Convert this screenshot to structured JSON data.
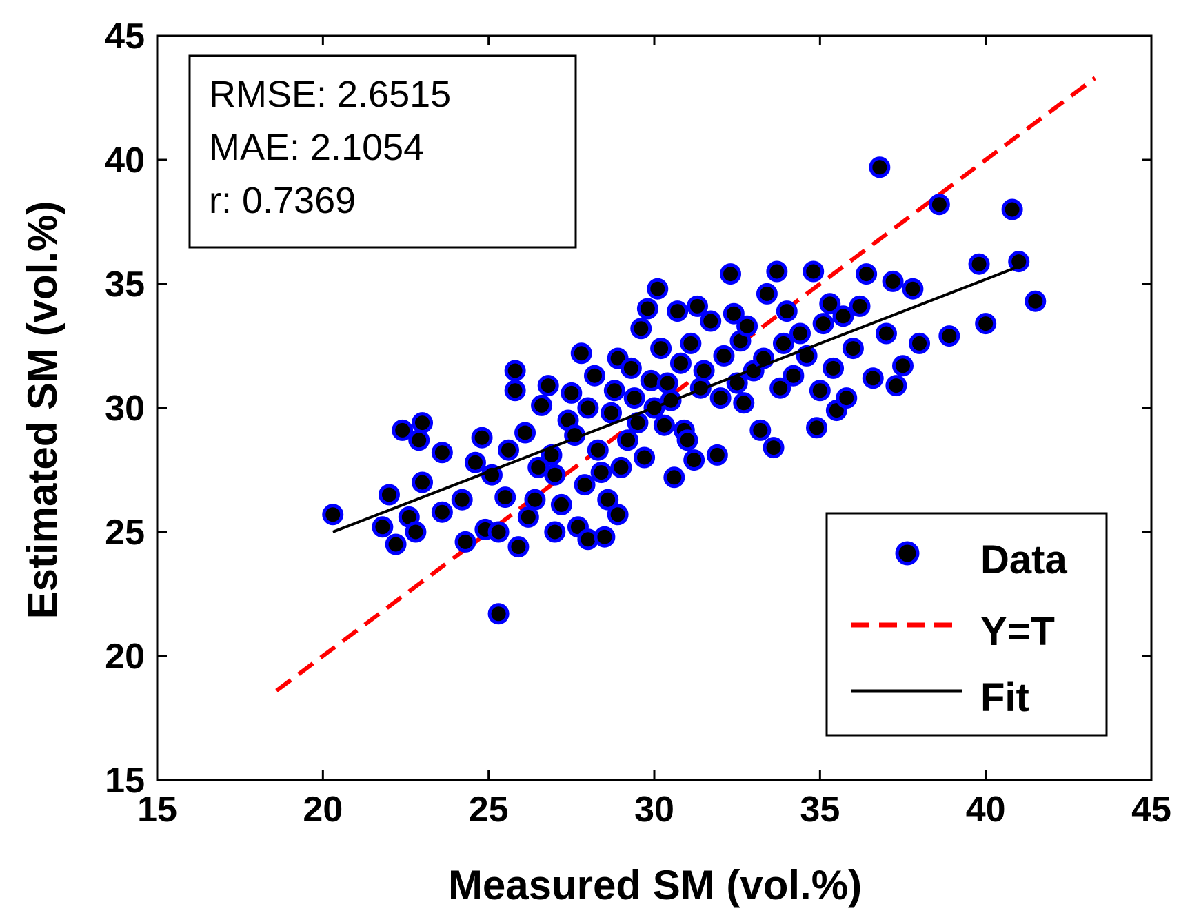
{
  "chart_data": {
    "type": "scatter",
    "title": "",
    "xlabel": "Measured SM (vol.%)",
    "ylabel": "Estimated SM (vol.%)",
    "xlim": [
      15,
      45
    ],
    "ylim": [
      15,
      45
    ],
    "xticks": [
      "15",
      "20",
      "25",
      "30",
      "35",
      "40",
      "45"
    ],
    "yticks": [
      "15",
      "20",
      "25",
      "30",
      "35",
      "40",
      "45"
    ],
    "grid": false,
    "legend_position": "bottom-right",
    "stats": {
      "rmse": "RMSE: 2.6515",
      "mae": "MAE: 2.1054",
      "r": "r: 0.7369"
    },
    "legend": {
      "data": "Data",
      "yt": "Y=T",
      "fit": "Fit"
    },
    "colors": {
      "marker_fill": "#000000",
      "marker_edge": "#0000ff",
      "yt_line": "#ff0000",
      "fit_line": "#000000"
    },
    "series": [
      {
        "name": "Y=T",
        "style": "dashed",
        "x": [
          18.6,
          43.3
        ],
        "y": [
          18.6,
          43.3
        ]
      },
      {
        "name": "Fit",
        "style": "solid",
        "x": [
          20.3,
          41.0
        ],
        "y": [
          25.0,
          35.7
        ]
      },
      {
        "name": "Data",
        "style": "markers",
        "points": [
          [
            20.3,
            25.7
          ],
          [
            21.8,
            25.2
          ],
          [
            22.0,
            26.5
          ],
          [
            22.2,
            24.5
          ],
          [
            22.4,
            29.1
          ],
          [
            22.6,
            25.6
          ],
          [
            22.8,
            25.0
          ],
          [
            22.9,
            28.7
          ],
          [
            23.0,
            29.4
          ],
          [
            23.0,
            27.0
          ],
          [
            23.6,
            28.2
          ],
          [
            23.6,
            25.8
          ],
          [
            24.2,
            26.3
          ],
          [
            24.3,
            24.6
          ],
          [
            24.6,
            27.8
          ],
          [
            24.8,
            28.8
          ],
          [
            24.9,
            25.1
          ],
          [
            25.1,
            27.3
          ],
          [
            25.3,
            21.7
          ],
          [
            25.3,
            25.0
          ],
          [
            25.5,
            26.4
          ],
          [
            25.6,
            28.3
          ],
          [
            25.8,
            31.5
          ],
          [
            25.8,
            30.7
          ],
          [
            25.9,
            24.4
          ],
          [
            26.1,
            29.0
          ],
          [
            26.2,
            25.6
          ],
          [
            26.4,
            26.3
          ],
          [
            26.5,
            27.6
          ],
          [
            26.6,
            30.1
          ],
          [
            26.8,
            30.9
          ],
          [
            26.9,
            28.1
          ],
          [
            27.0,
            27.3
          ],
          [
            27.0,
            25.0
          ],
          [
            27.2,
            26.1
          ],
          [
            27.4,
            29.5
          ],
          [
            27.5,
            30.6
          ],
          [
            27.6,
            28.9
          ],
          [
            27.7,
            25.2
          ],
          [
            27.8,
            32.2
          ],
          [
            27.9,
            26.9
          ],
          [
            28.0,
            24.7
          ],
          [
            28.0,
            30.0
          ],
          [
            28.2,
            31.3
          ],
          [
            28.3,
            28.3
          ],
          [
            28.4,
            27.4
          ],
          [
            28.5,
            24.8
          ],
          [
            28.6,
            26.3
          ],
          [
            28.7,
            29.8
          ],
          [
            28.8,
            30.7
          ],
          [
            28.9,
            25.7
          ],
          [
            28.9,
            32.0
          ],
          [
            29.0,
            27.6
          ],
          [
            29.2,
            28.7
          ],
          [
            29.3,
            31.6
          ],
          [
            29.4,
            30.4
          ],
          [
            29.5,
            29.4
          ],
          [
            29.6,
            33.2
          ],
          [
            29.7,
            28.0
          ],
          [
            29.8,
            34.0
          ],
          [
            29.9,
            31.1
          ],
          [
            30.0,
            30.0
          ],
          [
            30.1,
            34.8
          ],
          [
            30.2,
            32.4
          ],
          [
            30.3,
            29.3
          ],
          [
            30.4,
            31.0
          ],
          [
            30.5,
            30.3
          ],
          [
            30.6,
            27.2
          ],
          [
            30.7,
            33.9
          ],
          [
            30.8,
            31.8
          ],
          [
            30.9,
            29.1
          ],
          [
            31.0,
            28.7
          ],
          [
            31.1,
            32.6
          ],
          [
            31.2,
            27.9
          ],
          [
            31.3,
            34.1
          ],
          [
            31.4,
            30.8
          ],
          [
            31.5,
            31.5
          ],
          [
            31.7,
            33.5
          ],
          [
            31.9,
            28.1
          ],
          [
            32.0,
            30.4
          ],
          [
            32.1,
            32.1
          ],
          [
            32.3,
            35.4
          ],
          [
            32.4,
            33.8
          ],
          [
            32.5,
            31.0
          ],
          [
            32.6,
            32.7
          ],
          [
            32.7,
            30.2
          ],
          [
            32.8,
            33.3
          ],
          [
            33.0,
            31.5
          ],
          [
            33.2,
            29.1
          ],
          [
            33.3,
            32.0
          ],
          [
            33.4,
            34.6
          ],
          [
            33.6,
            28.4
          ],
          [
            33.7,
            35.5
          ],
          [
            33.8,
            30.8
          ],
          [
            33.9,
            32.6
          ],
          [
            34.0,
            33.9
          ],
          [
            34.2,
            31.3
          ],
          [
            34.4,
            33.0
          ],
          [
            34.6,
            32.1
          ],
          [
            34.8,
            35.5
          ],
          [
            34.9,
            29.2
          ],
          [
            35.0,
            30.7
          ],
          [
            35.1,
            33.4
          ],
          [
            35.3,
            34.2
          ],
          [
            35.4,
            31.6
          ],
          [
            35.5,
            29.9
          ],
          [
            35.7,
            33.7
          ],
          [
            35.8,
            30.4
          ],
          [
            36.0,
            32.4
          ],
          [
            36.2,
            34.1
          ],
          [
            36.4,
            35.4
          ],
          [
            36.6,
            31.2
          ],
          [
            36.8,
            39.7
          ],
          [
            37.0,
            33.0
          ],
          [
            37.2,
            35.1
          ],
          [
            37.3,
            30.9
          ],
          [
            37.5,
            31.7
          ],
          [
            37.8,
            34.8
          ],
          [
            38.0,
            32.6
          ],
          [
            38.6,
            38.2
          ],
          [
            38.9,
            32.9
          ],
          [
            39.8,
            35.8
          ],
          [
            40.0,
            33.4
          ],
          [
            40.8,
            38.0
          ],
          [
            41.0,
            35.9
          ],
          [
            41.5,
            34.3
          ]
        ]
      }
    ]
  }
}
